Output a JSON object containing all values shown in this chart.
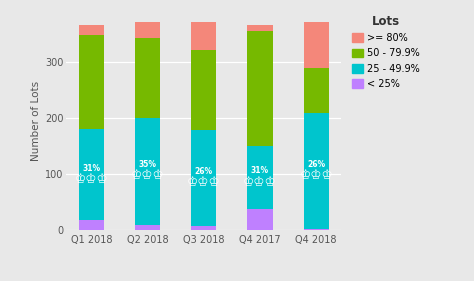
{
  "categories": [
    "Q1 2018",
    "Q2 2018",
    "Q3 2018",
    "Q4 2017",
    "Q4 2018"
  ],
  "segments": {
    "lt25": [
      18,
      10,
      8,
      38,
      2
    ],
    "s25_50": [
      162,
      190,
      170,
      112,
      207
    ],
    "s50_80": [
      168,
      142,
      143,
      205,
      80
    ],
    "ge80": [
      18,
      28,
      50,
      11,
      82
    ]
  },
  "colors": {
    "lt25": "#BF80FF",
    "s25_50": "#00C5CD",
    "s50_80": "#76B900",
    "ge80": "#F4877A"
  },
  "legend_labels": {
    "ge80": ">= 80%",
    "s50_80": "50 - 79.9%",
    "s25_50": "25 - 49.9%",
    "lt25": "< 25%"
  },
  "ylabel": "Number of Lots",
  "legend_title": "Lots",
  "ylim": [
    0,
    390
  ],
  "yticks": [
    0,
    100,
    200,
    300
  ],
  "background_color": "#E8E8E8",
  "bar_width": 0.45,
  "annotations": [
    "31%",
    "35%",
    "26%",
    "31%",
    "26%"
  ]
}
